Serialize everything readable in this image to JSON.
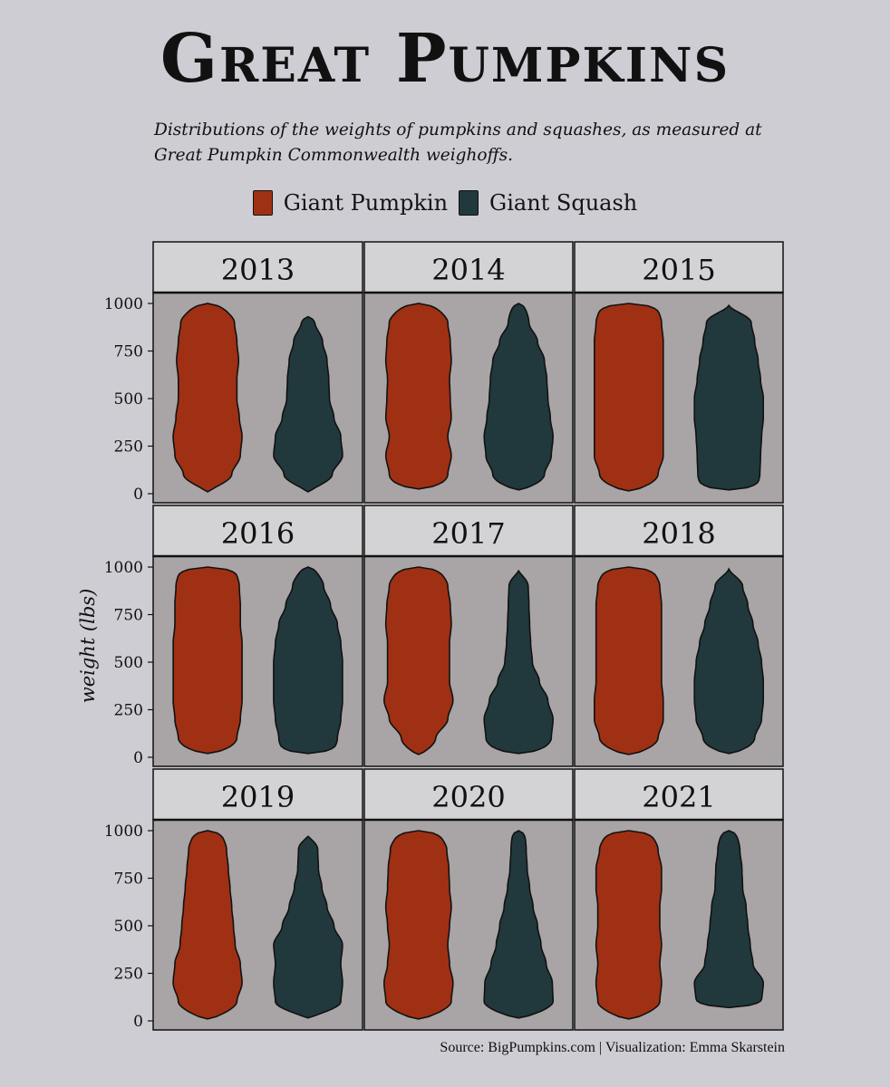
{
  "header": {
    "title": "Great Pumpkins",
    "subtitle": "Distributions of the weights of pumpkins and squashes, as measured at Great Pumpkin Commonwealth weighoffs."
  },
  "legend": {
    "items": [
      {
        "label": "Giant Pumpkin",
        "color": "#a03013"
      },
      {
        "label": "Giant Squash",
        "color": "#21393d"
      }
    ]
  },
  "footer": {
    "source": "Source: BigPumpkins.com  |  Visualization: Emma Skarstein"
  },
  "chart_data": {
    "type": "violin",
    "ylabel": "weight (lbs)",
    "ylim": [
      0,
      1000
    ],
    "yticks": [
      "0",
      "250",
      "500",
      "750",
      "1000"
    ],
    "grid": false,
    "legend_placement": "top",
    "colors": {
      "panel_bg": "#a9a4a5",
      "strip_bg": "#d3d3d5",
      "page_bg": "#cdcdd3"
    },
    "levels": [
      0,
      100,
      200,
      300,
      400,
      500,
      600,
      700,
      800,
      900,
      1000
    ],
    "panels": [
      {
        "year": "2013",
        "pumpkin": {
          "min": 10,
          "max": 1000,
          "width": [
            0.1,
            0.7,
            0.95,
            1.0,
            0.92,
            0.85,
            0.85,
            0.9,
            0.85,
            0.78,
            0.42
          ]
        },
        "squash": {
          "min": 10,
          "max": 930,
          "width": [
            0.1,
            0.7,
            1.0,
            0.95,
            0.75,
            0.62,
            0.6,
            0.55,
            0.42,
            0.2,
            0
          ]
        }
      },
      {
        "year": "2014",
        "pumpkin": {
          "min": 25,
          "max": 1000,
          "width": [
            0.45,
            0.85,
            0.95,
            0.85,
            0.95,
            0.92,
            0.9,
            0.95,
            0.92,
            0.85,
            0.5
          ]
        },
        "squash": {
          "min": 20,
          "max": 1000,
          "width": [
            0.25,
            0.75,
            0.95,
            1.0,
            0.92,
            0.85,
            0.82,
            0.75,
            0.55,
            0.3,
            0.18
          ]
        }
      },
      {
        "year": "2015",
        "pumpkin": {
          "min": 15,
          "max": 1000,
          "width": [
            0.35,
            0.85,
            1.0,
            1.0,
            1.0,
            1.0,
            1.0,
            1.0,
            1.0,
            0.95,
            0.8
          ]
        },
        "squash": {
          "min": 20,
          "max": 990,
          "width": [
            0.75,
            0.9,
            0.92,
            0.95,
            1.0,
            1.0,
            0.92,
            0.85,
            0.75,
            0.65,
            0
          ]
        }
      },
      {
        "year": "2016",
        "pumpkin": {
          "min": 20,
          "max": 1000,
          "width": [
            0.4,
            0.85,
            0.95,
            1.0,
            1.0,
            1.0,
            1.0,
            0.95,
            0.95,
            0.92,
            0.8
          ]
        },
        "squash": {
          "min": 20,
          "max": 1000,
          "width": [
            0.7,
            0.85,
            0.95,
            1.0,
            1.0,
            1.0,
            0.95,
            0.85,
            0.65,
            0.45,
            0.22
          ]
        }
      },
      {
        "year": "2017",
        "pumpkin": {
          "min": 15,
          "max": 1000,
          "width": [
            0.15,
            0.5,
            0.85,
            1.0,
            0.9,
            0.9,
            0.9,
            0.95,
            0.92,
            0.85,
            0.6
          ]
        },
        "squash": {
          "min": 20,
          "max": 980,
          "width": [
            0.55,
            0.95,
            1.0,
            0.85,
            0.6,
            0.4,
            0.35,
            0.32,
            0.3,
            0.28,
            0
          ]
        }
      },
      {
        "year": "2018",
        "pumpkin": {
          "min": 15,
          "max": 1000,
          "width": [
            0.35,
            0.85,
            1.0,
            1.0,
            0.95,
            0.95,
            0.95,
            0.95,
            0.95,
            0.9,
            0.7
          ]
        },
        "squash": {
          "min": 20,
          "max": 990,
          "width": [
            0.3,
            0.75,
            0.95,
            1.0,
            1.0,
            0.95,
            0.85,
            0.7,
            0.55,
            0.4,
            0
          ]
        }
      },
      {
        "year": "2019",
        "pumpkin": {
          "min": 10,
          "max": 1000,
          "width": [
            0.3,
            0.85,
            1.0,
            0.95,
            0.8,
            0.75,
            0.7,
            0.65,
            0.6,
            0.55,
            0.4
          ]
        },
        "squash": {
          "min": 15,
          "max": 970,
          "width": [
            0.15,
            0.95,
            1.0,
            0.95,
            1.0,
            0.75,
            0.55,
            0.4,
            0.3,
            0.28,
            0
          ]
        }
      },
      {
        "year": "2020",
        "pumpkin": {
          "min": 10,
          "max": 1000,
          "width": [
            0.35,
            0.95,
            1.0,
            0.9,
            0.85,
            0.9,
            0.95,
            0.9,
            0.88,
            0.82,
            0.6
          ]
        },
        "squash": {
          "min": 15,
          "max": 1000,
          "width": [
            0.3,
            1.0,
            0.98,
            0.8,
            0.65,
            0.55,
            0.42,
            0.32,
            0.25,
            0.22,
            0.18
          ]
        }
      },
      {
        "year": "2021",
        "pumpkin": {
          "min": 10,
          "max": 1000,
          "width": [
            0.35,
            0.9,
            0.95,
            0.9,
            0.95,
            0.9,
            0.9,
            0.95,
            0.95,
            0.85,
            0.65
          ]
        },
        "squash": {
          "min": 70,
          "max": 1000,
          "width": [
            0,
            0.95,
            1.0,
            0.7,
            0.62,
            0.55,
            0.5,
            0.4,
            0.38,
            0.32,
            0.22
          ]
        }
      }
    ]
  }
}
